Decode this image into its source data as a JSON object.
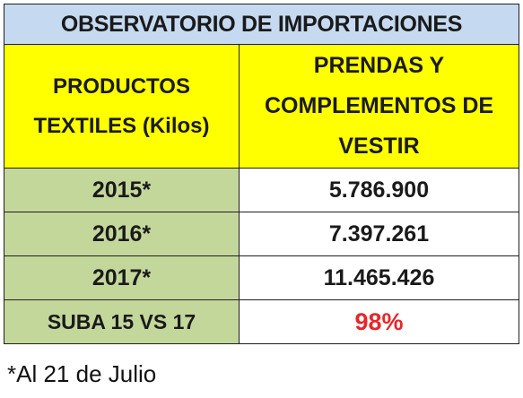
{
  "title": "OBSERVATORIO DE IMPORTACIONES",
  "header": {
    "left": [
      "PRODUCTOS",
      "TEXTILES (Kilos)"
    ],
    "right": [
      "PRENDAS Y",
      "COMPLEMENTOS DE",
      "VESTIR"
    ]
  },
  "rows": [
    {
      "year": "2015*",
      "value": "5.786.900"
    },
    {
      "year": "2016*",
      "value": "7.397.261"
    },
    {
      "year": "2017*",
      "value": "11.465.426"
    }
  ],
  "summary": {
    "label": "SUBA 15 VS 17",
    "value": "98%"
  },
  "footnote": "*Al 21 de Julio",
  "colors": {
    "title_bg": "#c5d9f1",
    "header_bg": "#ffff00",
    "year_bg": "#c4d79b",
    "highlight": "#e8262b"
  }
}
